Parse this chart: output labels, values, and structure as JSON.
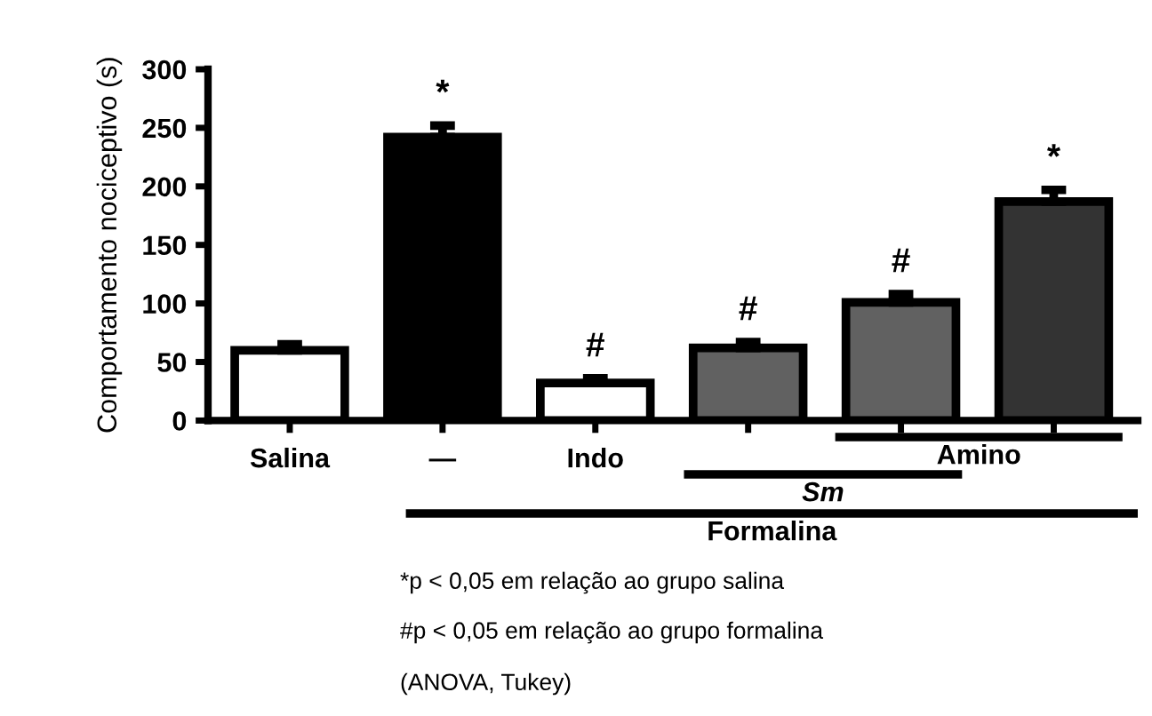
{
  "chart_data": {
    "type": "bar",
    "ylabel": "Comportamento nociceptivo (s)",
    "categories": [
      "Salina",
      "—",
      "Indo",
      null,
      null,
      null
    ],
    "values": [
      60,
      242,
      32,
      62,
      101,
      187
    ],
    "errors": [
      5,
      10,
      4,
      5,
      7,
      10
    ],
    "colors": [
      "#ffffff",
      "#000000",
      "#ffffff",
      "#616161",
      "#616161",
      "#333333"
    ],
    "ylim": [
      0,
      300
    ],
    "yticks": [
      0,
      50,
      100,
      150,
      200,
      250,
      300
    ],
    "grid": false,
    "legend": false,
    "annotations": [
      "*",
      "#",
      "#",
      "#",
      "*",
      "Amino",
      "Sm",
      "Formalina",
      "*p < 0,05 em relação ao grupo salina",
      "#p < 0,05 em relação ao grupo formalina",
      "(ANOVA, Tukey)"
    ]
  }
}
